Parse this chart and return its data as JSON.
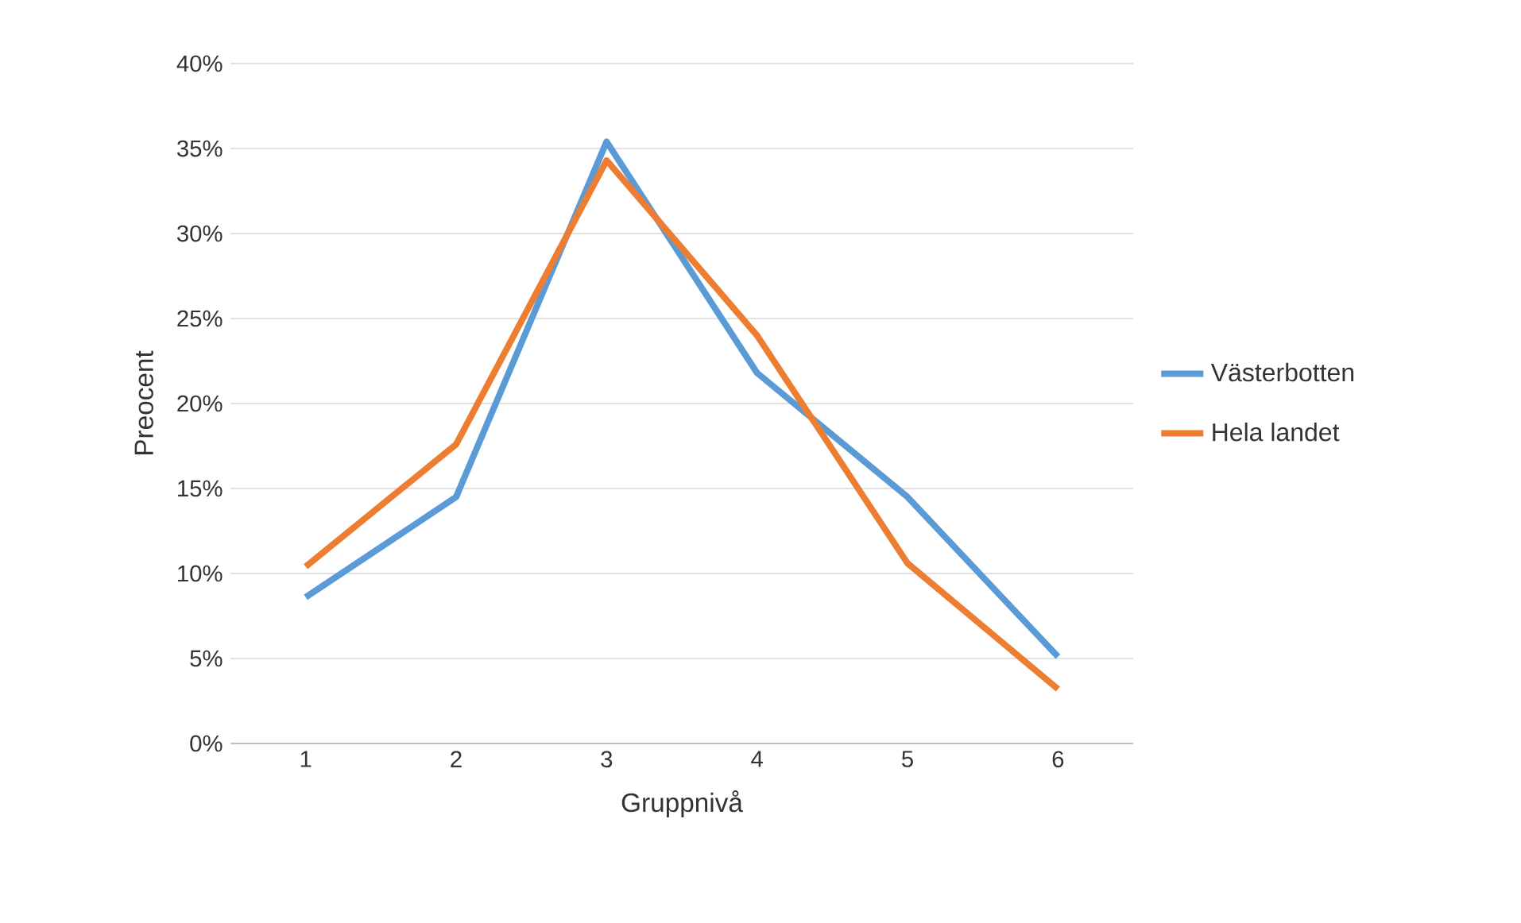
{
  "chart_data": {
    "type": "line",
    "xlabel": "Gruppnivå",
    "ylabel": "Preocent",
    "categories": [
      "1",
      "2",
      "3",
      "4",
      "5",
      "6"
    ],
    "series": [
      {
        "name": "Västerbotten",
        "color": "#5b9bd5",
        "values": [
          8.6,
          14.5,
          35.4,
          21.8,
          14.5,
          5.1
        ]
      },
      {
        "name": "Hela landet",
        "color": "#ed7d31",
        "values": [
          10.4,
          17.6,
          34.3,
          24.0,
          10.6,
          3.2
        ]
      }
    ],
    "ylim": [
      0,
      40
    ],
    "yticks": [
      {
        "value": 0,
        "label": "0%"
      },
      {
        "value": 5,
        "label": "5%"
      },
      {
        "value": 10,
        "label": "10%"
      },
      {
        "value": 15,
        "label": "15%"
      },
      {
        "value": 20,
        "label": "20%"
      },
      {
        "value": 25,
        "label": "25%"
      },
      {
        "value": 30,
        "label": "30%"
      },
      {
        "value": 35,
        "label": "35%"
      },
      {
        "value": 40,
        "label": "40%"
      }
    ],
    "grid": "y",
    "legend": "right",
    "marker": "none",
    "line_style": "solid"
  }
}
